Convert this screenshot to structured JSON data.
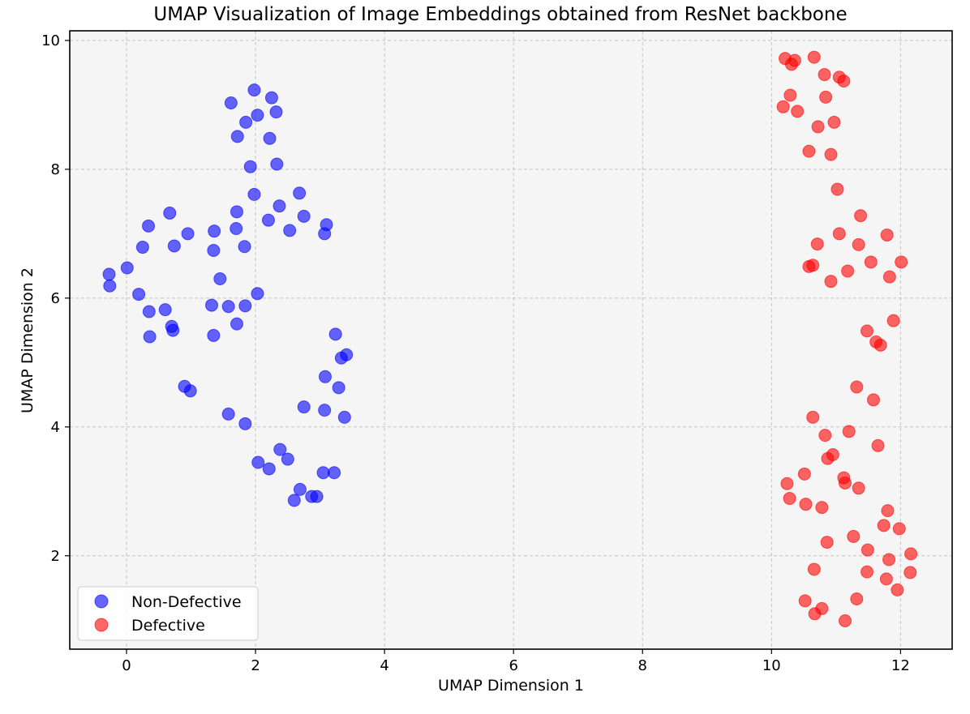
{
  "chart_data": {
    "type": "scatter",
    "title": "UMAP Visualization of Image Embeddings obtained from ResNet backbone",
    "xlabel": "UMAP Dimension 1",
    "ylabel": "UMAP Dimension 2",
    "xlim": [
      -0.88,
      12.8
    ],
    "ylim": [
      0.55,
      10.15
    ],
    "xticks": [
      0,
      2,
      4,
      6,
      8,
      10,
      12
    ],
    "yticks": [
      2,
      4,
      6,
      8,
      10
    ],
    "grid": true,
    "legend_position": "bottom-left",
    "series": [
      {
        "name": "Non-Defective",
        "color": "#0000ff",
        "points": [
          [
            1.62,
            9.03
          ],
          [
            1.98,
            9.23
          ],
          [
            2.25,
            9.11
          ],
          [
            2.32,
            8.89
          ],
          [
            1.85,
            8.73
          ],
          [
            2.03,
            8.84
          ],
          [
            1.72,
            8.51
          ],
          [
            2.22,
            8.48
          ],
          [
            1.92,
            8.04
          ],
          [
            2.33,
            8.08
          ],
          [
            1.98,
            7.61
          ],
          [
            2.37,
            7.43
          ],
          [
            2.68,
            7.63
          ],
          [
            0.67,
            7.32
          ],
          [
            1.71,
            7.34
          ],
          [
            0.34,
            7.12
          ],
          [
            2.2,
            7.21
          ],
          [
            2.75,
            7.27
          ],
          [
            3.1,
            7.14
          ],
          [
            0.95,
            7.0
          ],
          [
            1.36,
            7.04
          ],
          [
            1.7,
            7.08
          ],
          [
            2.53,
            7.05
          ],
          [
            3.07,
            7.0
          ],
          [
            0.25,
            6.79
          ],
          [
            0.74,
            6.81
          ],
          [
            1.35,
            6.74
          ],
          [
            1.83,
            6.8
          ],
          [
            0.01,
            6.47
          ],
          [
            -0.27,
            6.37
          ],
          [
            1.45,
            6.3
          ],
          [
            -0.26,
            6.19
          ],
          [
            0.19,
            6.06
          ],
          [
            2.03,
            6.07
          ],
          [
            1.32,
            5.89
          ],
          [
            1.58,
            5.87
          ],
          [
            1.84,
            5.88
          ],
          [
            0.6,
            5.82
          ],
          [
            0.35,
            5.79
          ],
          [
            1.71,
            5.6
          ],
          [
            0.7,
            5.56
          ],
          [
            0.72,
            5.5
          ],
          [
            0.36,
            5.4
          ],
          [
            1.35,
            5.42
          ],
          [
            3.24,
            5.44
          ],
          [
            3.41,
            5.12
          ],
          [
            3.33,
            5.07
          ],
          [
            3.08,
            4.78
          ],
          [
            3.29,
            4.61
          ],
          [
            0.9,
            4.63
          ],
          [
            0.99,
            4.56
          ],
          [
            2.75,
            4.31
          ],
          [
            3.07,
            4.26
          ],
          [
            1.58,
            4.2
          ],
          [
            3.38,
            4.15
          ],
          [
            1.84,
            4.05
          ],
          [
            2.38,
            3.65
          ],
          [
            2.5,
            3.5
          ],
          [
            2.04,
            3.45
          ],
          [
            2.21,
            3.35
          ],
          [
            3.05,
            3.29
          ],
          [
            3.22,
            3.29
          ],
          [
            2.69,
            3.03
          ],
          [
            2.87,
            2.92
          ],
          [
            2.95,
            2.92
          ],
          [
            2.6,
            2.86
          ]
        ]
      },
      {
        "name": "Defective",
        "color": "#ff0000",
        "points": [
          [
            10.21,
            9.72
          ],
          [
            10.31,
            9.63
          ],
          [
            10.36,
            9.69
          ],
          [
            10.66,
            9.74
          ],
          [
            10.82,
            9.47
          ],
          [
            11.05,
            9.43
          ],
          [
            11.12,
            9.37
          ],
          [
            10.29,
            9.15
          ],
          [
            10.84,
            9.12
          ],
          [
            10.18,
            8.97
          ],
          [
            10.4,
            8.9
          ],
          [
            10.97,
            8.73
          ],
          [
            10.72,
            8.66
          ],
          [
            10.58,
            8.28
          ],
          [
            10.92,
            8.23
          ],
          [
            11.02,
            7.69
          ],
          [
            11.38,
            7.28
          ],
          [
            11.05,
            7.0
          ],
          [
            11.79,
            6.98
          ],
          [
            10.71,
            6.84
          ],
          [
            11.35,
            6.83
          ],
          [
            11.54,
            6.56
          ],
          [
            12.01,
            6.56
          ],
          [
            10.58,
            6.49
          ],
          [
            10.64,
            6.51
          ],
          [
            11.18,
            6.42
          ],
          [
            11.83,
            6.33
          ],
          [
            10.92,
            6.26
          ],
          [
            11.89,
            5.65
          ],
          [
            11.48,
            5.49
          ],
          [
            11.62,
            5.32
          ],
          [
            11.69,
            5.27
          ],
          [
            11.32,
            4.62
          ],
          [
            11.58,
            4.42
          ],
          [
            10.64,
            4.15
          ],
          [
            11.2,
            3.93
          ],
          [
            10.83,
            3.87
          ],
          [
            11.65,
            3.71
          ],
          [
            10.95,
            3.57
          ],
          [
            10.87,
            3.51
          ],
          [
            10.51,
            3.27
          ],
          [
            11.12,
            3.21
          ],
          [
            11.14,
            3.13
          ],
          [
            10.24,
            3.12
          ],
          [
            11.35,
            3.05
          ],
          [
            10.28,
            2.89
          ],
          [
            10.53,
            2.8
          ],
          [
            10.78,
            2.75
          ],
          [
            11.8,
            2.7
          ],
          [
            11.74,
            2.47
          ],
          [
            11.98,
            2.42
          ],
          [
            11.27,
            2.3
          ],
          [
            10.86,
            2.21
          ],
          [
            11.49,
            2.09
          ],
          [
            12.16,
            2.03
          ],
          [
            11.82,
            1.94
          ],
          [
            10.66,
            1.79
          ],
          [
            11.48,
            1.75
          ],
          [
            12.15,
            1.74
          ],
          [
            11.78,
            1.64
          ],
          [
            11.95,
            1.47
          ],
          [
            11.32,
            1.33
          ],
          [
            10.52,
            1.3
          ],
          [
            10.78,
            1.18
          ],
          [
            10.67,
            1.1
          ],
          [
            11.14,
            0.99
          ]
        ]
      }
    ]
  }
}
